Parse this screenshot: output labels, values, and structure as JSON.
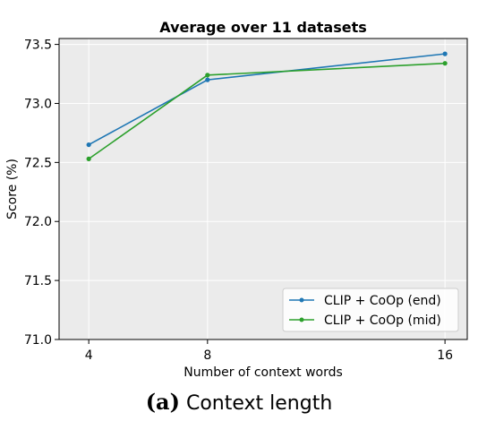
{
  "chart_data": {
    "type": "line",
    "title": "Average over 11 datasets",
    "xlabel": "Number of context words",
    "ylabel": "Score (%)",
    "x": [
      4,
      8,
      16
    ],
    "x_ticks": [
      "4",
      "8",
      "16"
    ],
    "y_ticks": [
      "71.0",
      "71.5",
      "72.0",
      "72.5",
      "73.0",
      "73.5"
    ],
    "ylim": [
      71.0,
      73.55
    ],
    "grid": true,
    "legend_position": "lower-right",
    "series": [
      {
        "name": "CLIP + CoOp (end)",
        "values": [
          72.65,
          73.2,
          73.42
        ],
        "color": "#1f77b4"
      },
      {
        "name": "CLIP + CoOp (mid)",
        "values": [
          72.53,
          73.24,
          73.34
        ],
        "color": "#2ca02c"
      }
    ]
  },
  "caption": {
    "letter": "(a)",
    "text": "Context length"
  }
}
